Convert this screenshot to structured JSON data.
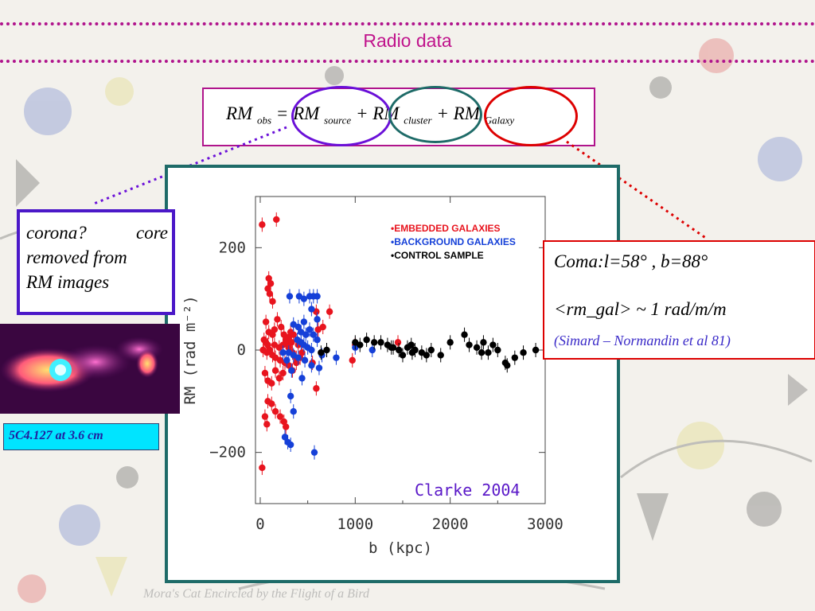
{
  "slide": {
    "title": "Radio data",
    "caption": "Mora's Cat Encircled by the Flight of a Bird"
  },
  "formula": {
    "rm1": "RM",
    "sub_obs": "obs",
    "eq": "=",
    "rm2": "RM",
    "sub_source": "source",
    "plus1": "+",
    "rm3": "RM",
    "sub_cluster": "cluster",
    "plus2": "+",
    "rm4": "RM",
    "sub_galaxy": "Galaxy"
  },
  "corona": {
    "word1": "corona?",
    "word2": "core",
    "line2": "removed from",
    "line3": "RM images"
  },
  "source_label": "5C4.127 at 3.6 cm",
  "coma": {
    "line1": "Coma:l=58° , b=88°",
    "line2": "<rm_gal> ~ 1 rad/m/m",
    "line3": "(Simard – Normandin et al 81)"
  },
  "colors": {
    "embedded": "#e8141e",
    "background": "#1540d8",
    "control": "#000000",
    "accent": "#b0148c"
  },
  "chart_data": {
    "type": "scatter",
    "xlabel": "b (kpc)",
    "ylabel": "RM (rad m⁻²)",
    "xlim": [
      -50,
      3000
    ],
    "ylim": [
      -300,
      300
    ],
    "xticks": [
      0,
      1000,
      2000,
      3000
    ],
    "yticks": [
      -200,
      0,
      200
    ],
    "legend": [
      "•EMBEDDED GALAXIES",
      "•BACKGROUND GALAXIES",
      "•CONTROL SAMPLE"
    ],
    "legend_position": "top-right",
    "annotation": "Clarke 2004",
    "series": [
      {
        "name": "EMBEDDED GALAXIES",
        "points": [
          [
            20,
            245
          ],
          [
            170,
            255
          ],
          [
            90,
            140
          ],
          [
            130,
            95
          ],
          [
            110,
            130
          ],
          [
            80,
            120
          ],
          [
            100,
            110
          ],
          [
            60,
            55
          ],
          [
            90,
            35
          ],
          [
            130,
            30
          ],
          [
            150,
            40
          ],
          [
            180,
            60
          ],
          [
            220,
            45
          ],
          [
            250,
            30
          ],
          [
            270,
            20
          ],
          [
            300,
            25
          ],
          [
            320,
            35
          ],
          [
            350,
            30
          ],
          [
            40,
            20
          ],
          [
            60,
            15
          ],
          [
            80,
            10
          ],
          [
            150,
            10
          ],
          [
            200,
            5
          ],
          [
            240,
            10
          ],
          [
            270,
            15
          ],
          [
            300,
            5
          ],
          [
            340,
            -5
          ],
          [
            30,
            0
          ],
          [
            70,
            -5
          ],
          [
            100,
            0
          ],
          [
            130,
            -10
          ],
          [
            160,
            -15
          ],
          [
            210,
            -20
          ],
          [
            260,
            -25
          ],
          [
            300,
            -30
          ],
          [
            340,
            -40
          ],
          [
            380,
            -25
          ],
          [
            420,
            -15
          ],
          [
            50,
            -45
          ],
          [
            80,
            -60
          ],
          [
            120,
            -65
          ],
          [
            160,
            -40
          ],
          [
            200,
            -55
          ],
          [
            240,
            -45
          ],
          [
            80,
            -100
          ],
          [
            120,
            -105
          ],
          [
            160,
            -120
          ],
          [
            210,
            -130
          ],
          [
            250,
            -140
          ],
          [
            50,
            -130
          ],
          [
            70,
            -145
          ],
          [
            270,
            -150
          ],
          [
            20,
            -230
          ],
          [
            590,
            75
          ],
          [
            730,
            75
          ],
          [
            970,
            -20
          ],
          [
            1000,
            10
          ],
          [
            1450,
            15
          ],
          [
            660,
            45
          ],
          [
            610,
            40
          ],
          [
            590,
            -75
          ],
          [
            550,
            -25
          ],
          [
            440,
            -5
          ],
          [
            400,
            10
          ],
          [
            380,
            -15
          ],
          [
            330,
            15
          ]
        ],
        "color": "#e8141e"
      },
      {
        "name": "BACKGROUND GALAXIES",
        "points": [
          [
            310,
            105
          ],
          [
            410,
            105
          ],
          [
            460,
            100
          ],
          [
            520,
            105
          ],
          [
            560,
            105
          ],
          [
            600,
            105
          ],
          [
            540,
            80
          ],
          [
            600,
            60
          ],
          [
            460,
            55
          ],
          [
            350,
            50
          ],
          [
            400,
            45
          ],
          [
            430,
            35
          ],
          [
            480,
            30
          ],
          [
            520,
            40
          ],
          [
            560,
            30
          ],
          [
            600,
            20
          ],
          [
            390,
            20
          ],
          [
            430,
            15
          ],
          [
            460,
            10
          ],
          [
            500,
            5
          ],
          [
            540,
            0
          ],
          [
            300,
            -5
          ],
          [
            350,
            -10
          ],
          [
            400,
            -15
          ],
          [
            470,
            -20
          ],
          [
            540,
            -30
          ],
          [
            620,
            -35
          ],
          [
            650,
            -10
          ],
          [
            240,
            -5
          ],
          [
            280,
            -20
          ],
          [
            330,
            -40
          ],
          [
            440,
            -55
          ],
          [
            320,
            -90
          ],
          [
            350,
            -120
          ],
          [
            290,
            -180
          ],
          [
            320,
            -185
          ],
          [
            260,
            -170
          ],
          [
            570,
            -200
          ],
          [
            800,
            -15
          ],
          [
            1000,
            5
          ],
          [
            1180,
            0
          ]
        ],
        "color": "#1540d8"
      },
      {
        "name": "CONTROL SAMPLE",
        "points": [
          [
            640,
            -5
          ],
          [
            700,
            0
          ],
          [
            1000,
            15
          ],
          [
            1050,
            10
          ],
          [
            1120,
            20
          ],
          [
            1200,
            15
          ],
          [
            1270,
            15
          ],
          [
            1340,
            10
          ],
          [
            1400,
            5
          ],
          [
            1460,
            0
          ],
          [
            1500,
            -10
          ],
          [
            1550,
            5
          ],
          [
            1590,
            10
          ],
          [
            1630,
            0
          ],
          [
            1700,
            -5
          ],
          [
            1750,
            -10
          ],
          [
            1800,
            0
          ],
          [
            1900,
            -10
          ],
          [
            2000,
            15
          ],
          [
            2150,
            30
          ],
          [
            2200,
            10
          ],
          [
            2280,
            5
          ],
          [
            2330,
            -5
          ],
          [
            2400,
            -5
          ],
          [
            2450,
            10
          ],
          [
            2500,
            0
          ],
          [
            2580,
            -25
          ],
          [
            2600,
            -30
          ],
          [
            2680,
            -15
          ],
          [
            2770,
            -5
          ],
          [
            2900,
            0
          ],
          [
            1600,
            -5
          ],
          [
            2350,
            15
          ],
          [
            1380,
            5
          ]
        ],
        "color": "#000000"
      }
    ]
  }
}
